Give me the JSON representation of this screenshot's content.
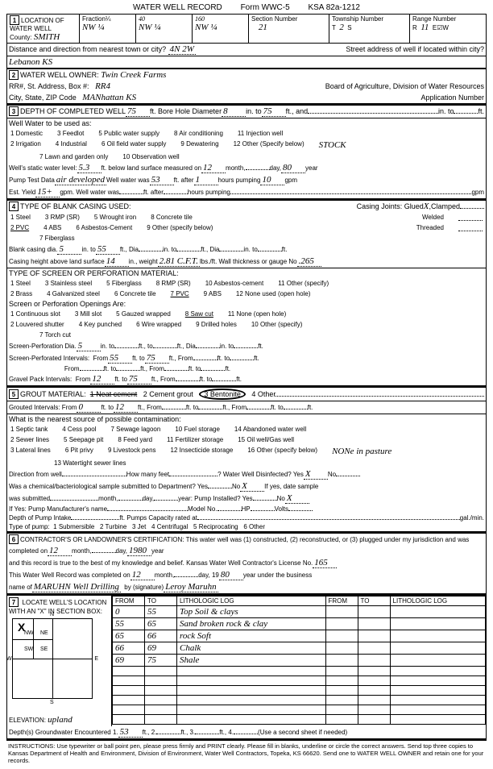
{
  "header": {
    "title": "WATER WELL RECORD",
    "form": "Form WWC-5",
    "ksa": "KSA 82a-1212"
  },
  "loc": {
    "label": "LOCATION OF WATER WELL",
    "county_lbl": "County:",
    "county": "SMITH",
    "fraction_lbl": "Fraction¼",
    "f1": "NW ¼",
    "f2t": "40",
    "f2": "NW ¼",
    "f3t": "160",
    "f3": "NW ¼",
    "sec_lbl": "Section Number",
    "sec": "21",
    "twp_lbl": "Township Number",
    "twp_t": "T",
    "twp": "2",
    "twp_s": "S",
    "rng_lbl": "Range Number",
    "rng_r": "R",
    "rng": "11",
    "rng_e": "E☑W",
    "dist_lbl": "Distance and direction from nearest town or city?",
    "dist": "4N 2W",
    "street_lbl": "Street address of well if located within city?",
    "town": "Lebanon KS"
  },
  "owner": {
    "label": "WATER WELL OWNER:",
    "name": "Twin Creek Farms",
    "addr_lbl": "RR#, St. Address, Box #:",
    "addr": "RR4",
    "board": "Board of Agriculture, Division of Water Resources",
    "city_lbl": "City, State, ZIP Code",
    "city": "MANhattan KS",
    "app_lbl": "Application Number"
  },
  "depth": {
    "label": "DEPTH OF COMPLETED WELL",
    "val": "75",
    "bore_lbl": "ft. Bore Hole Diameter",
    "bore": "8",
    "bore2": "in. to",
    "bore3": "75",
    "bore4": "ft., and",
    "use_lbl": "Well Water to be used as:",
    "opts": [
      "1 Domestic",
      "3 Feedlot",
      "5 Public water supply",
      "6 Oil field water supply",
      "7 Lawn and garden only",
      "2 Irrigation",
      "4 Industrial",
      "8 Air conditioning",
      "9 Dewatering",
      "10 Observation well",
      "11 Injection well",
      "12 Other (Specify below)"
    ],
    "other": "STOCK",
    "static_lbl": "Well's static water level:",
    "static": "5.3",
    "static2": "ft. below land surface measured on",
    "static_mo": "12",
    "static_day": "day",
    "static_yr": "80",
    "pump_lbl": "Pump Test Data",
    "pump_note": "air developed",
    "ww_lbl": "Well water was",
    "ww": "53",
    "ww2": "ft. after",
    "ww_hrs": "1",
    "ww3": "hours pumping",
    "ww_gpm": "10",
    "est_lbl": "Est. Yield",
    "est": "15+",
    "est2": "gpm. Well water was",
    "est3": "ft. after",
    "est4": "hours pumping"
  },
  "casing": {
    "label": "TYPE OF BLANK CASING USED:",
    "opts": [
      "1 Steel",
      "3 RMP (SR)",
      "5 Wrought iron",
      "8 Concrete tile",
      "2 PVC",
      "4 ABS",
      "6 Asbestos-Cement",
      "9 Other (specify below)",
      "7 Fiberglass"
    ],
    "joints_lbl": "Casing Joints: Glued",
    "joints_x": "X",
    "joints2": "Clamped",
    "welded": "Welded",
    "threaded": "Threaded",
    "dia_lbl": "Blank casing dia.",
    "dia": "5",
    "dia2": "in. to",
    "dia3": "55",
    "dia4": "ft., Dia",
    "dia5": "in. to",
    "ht_lbl": "Casing height above land surface",
    "ht": "14",
    "wt_lbl": "in., weight",
    "wt": "2.81 C.F.T.",
    "wt2": "lbs./ft. Wall thickness or gauge No",
    "gauge": ".265",
    "screen_lbl": "TYPE OF SCREEN OR PERFORATION MATERIAL:",
    "sopts": [
      "1 Steel",
      "3 Stainless steel",
      "5 Fiberglass",
      "8 RMP (SR)",
      "10 Asbestos-cement",
      "11 Other (specify)",
      "2 Brass",
      "4 Galvanized steel",
      "6 Concrete tile",
      "7 PVC",
      "9 ABS",
      "12 None used (open hole)"
    ],
    "open_lbl": "Screen or Perforation Openings Are:",
    "oopts": [
      "1 Continuous slot",
      "3 Mill slot",
      "5 Gauzed wrapped",
      "8 Saw cut",
      "11 None (open hole)",
      "2 Louvered shutter",
      "4 Key punched",
      "6 Wire wrapped",
      "9 Drilled holes",
      "7 Torch cut",
      "10 Other (specify)"
    ],
    "spdia_lbl": "Screen-Perforation Dia.",
    "spdia": "5",
    "spdia2": "in. to",
    "spi_lbl": "Screen-Perforated Intervals:",
    "spi_from": "55",
    "spi_to": "75",
    "gp_lbl": "Gravel Pack Intervals:",
    "gp_from": "12",
    "gp_to": "75"
  },
  "grout": {
    "label": "GROUT MATERIAL:",
    "opts": [
      "1 Neat cement",
      "2 Cement grout",
      "3 Bentonite",
      "4 Other"
    ],
    "int_lbl": "Grouted Intervals: From",
    "int_from": "0",
    "int_to": "12",
    "contam_lbl": "What is the nearest source of possible contamination:",
    "copts": [
      "1 Septic tank",
      "4 Cess pool",
      "7 Sewage lagoon",
      "10 Fuel storage",
      "14 Abandoned water well",
      "2 Sewer lines",
      "5 Seepage pit",
      "8 Feed yard",
      "11 Fertilizer storage",
      "15 Oil well/Gas well",
      "3 Lateral lines",
      "6 Pit privy",
      "9 Livestock pens",
      "12 Insecticide storage",
      "16 Other (specify below)",
      "13 Watertight sewer lines"
    ],
    "cnote": "NONe in pasture",
    "dir_lbl": "Direction from well",
    "feet_lbl": "How many feet",
    "disinf_lbl": "? Water Well Disinfected? Yes",
    "disinf_x": "X",
    "disinf_no": "No",
    "chem_lbl": "Was a chemical/bacteriological sample submitted to Department? Yes",
    "chem_no": "No",
    "chem_x": "X",
    "chem2": "If yes, date sample",
    "sub_lbl": "was submitted",
    "pi_lbl": "year: Pump Installed? Yes",
    "pi_no": "No",
    "pi_x": "X",
    "mfr_lbl": "If Yes: Pump Manufacturer's name",
    "model_lbl": "Model No.",
    "hp_lbl": "HP",
    "volts_lbl": "Volts",
    "intake_lbl": "Depth of Pump Intake",
    "cap_lbl": "ft. Pumps Capacity rated at",
    "ptype_lbl": "Type of pump:",
    "ptypes": [
      "1 Submersible",
      "2 Turbine",
      "3 Jet",
      "4 Centrifugal",
      "5 Reciprocating",
      "6 Other"
    ]
  },
  "cert": {
    "label": "CONTRACTOR'S OR LANDOWNER'S CERTIFICATION: This water well was (1) constructed, (2) reconstructed, or (3) plugged under my jurisdiction and was",
    "comp_lbl": "completed on",
    "comp_mo": "12",
    "comp_yr": "1980",
    "rec_lbl": "and this record is true to the best of my knowledge and belief. Kansas Water Well Contractor's License No.",
    "lic": "165",
    "wr_lbl": "This Water Well Record was completed on",
    "wr_mo": "12",
    "wr_yr2": "80",
    "wr2": "year under the business",
    "name_lbl": "name of",
    "bname": "MARUHN Well Drilling",
    "sig_lbl": "by (signature)",
    "sig": "Leroy Maruhn"
  },
  "log": {
    "label": "LOCATE WELL'S LOCATION WITH AN \"X\" IN SECTION BOX:",
    "hdr": [
      "FROM",
      "TO",
      "LITHOLOGIC LOG",
      "FROM",
      "TO",
      "LITHOLOGIC LOG"
    ],
    "rows": [
      [
        "0",
        "55",
        "Top Soil & clays",
        "",
        "",
        ""
      ],
      [
        "55",
        "65",
        "Sand broken rock & clay",
        "",
        "",
        ""
      ],
      [
        "65",
        "66",
        "rock   Soft",
        "",
        "",
        ""
      ],
      [
        "66",
        "69",
        "Chalk",
        "",
        "",
        ""
      ],
      [
        "69",
        "75",
        "Shale",
        "",
        "",
        ""
      ]
    ],
    "elev_lbl": "ELEVATION:",
    "elev": "upland",
    "gw_lbl": "Depth(s) Groundwater Encountered 1.",
    "gw1": "53",
    "gw2_lbl": "ft., 2.",
    "gw3_lbl": "ft., 3.",
    "gw4_lbl": "ft., 4.",
    "gw5": "(Use a second sheet if needed)",
    "secmap": {
      "nw": "NW",
      "ne": "NE",
      "sw": "SW",
      "se": "SE",
      "n": "N",
      "s": "S",
      "e": "E",
      "w": "W"
    }
  },
  "instr": "INSTRUCTIONS: Use typewriter or ball point pen, please press firmly and PRINT clearly. Please fill in blanks, underline or circle the correct answers. Send top three copies to Kansas Department of Health and Environment, Division of Environment, Water Well Contractors, Topeka, KS 66620. Send one to WATER WELL OWNER and retain one for your records."
}
